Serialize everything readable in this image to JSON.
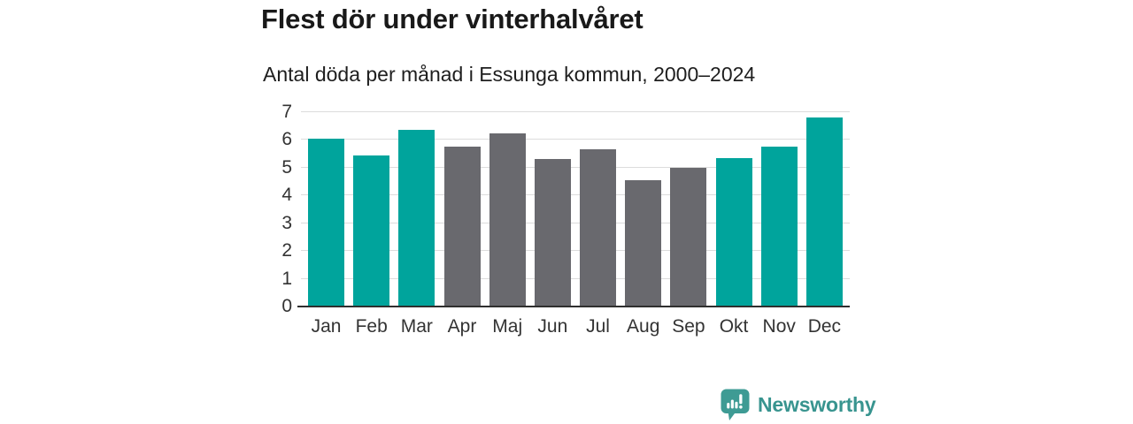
{
  "title": "Flest dör under vinterhalvåret",
  "subtitle": "Antal döda per månad i Essunga kommun, 2000–2024",
  "chart_data": {
    "type": "bar",
    "categories": [
      "Jan",
      "Feb",
      "Mar",
      "Apr",
      "Maj",
      "Jun",
      "Jul",
      "Aug",
      "Sep",
      "Okt",
      "Nov",
      "Dec"
    ],
    "values": [
      6.05,
      5.45,
      6.35,
      5.75,
      6.25,
      5.3,
      5.65,
      4.55,
      5.0,
      5.35,
      5.75,
      6.8
    ],
    "bar_groups": [
      "winter",
      "winter",
      "winter",
      "summer",
      "summer",
      "summer",
      "summer",
      "summer",
      "summer",
      "winter",
      "winter",
      "winter"
    ],
    "palette": {
      "winter": "#00a49c",
      "summer": "#69696e"
    },
    "title": "Flest dör under vinterhalvåret",
    "subtitle": "Antal döda per månad i Essunga kommun, 2000–2024",
    "xlabel": "",
    "ylabel": "",
    "ylim": [
      0,
      7
    ],
    "yticks": [
      0,
      1,
      2,
      3,
      4,
      5,
      6,
      7
    ],
    "grid": true,
    "legend": "none"
  },
  "axis": {
    "tick_color": "#333333",
    "grid_color": "#dcdcdc",
    "baseline_color": "#2f2f2f"
  },
  "footer": {
    "brand": "Newsworthy",
    "logo_icon": "newsworthy-speech-bubble-bar-chart-icon",
    "brand_color": "#38948f",
    "icon_color": "#3e9b94"
  }
}
